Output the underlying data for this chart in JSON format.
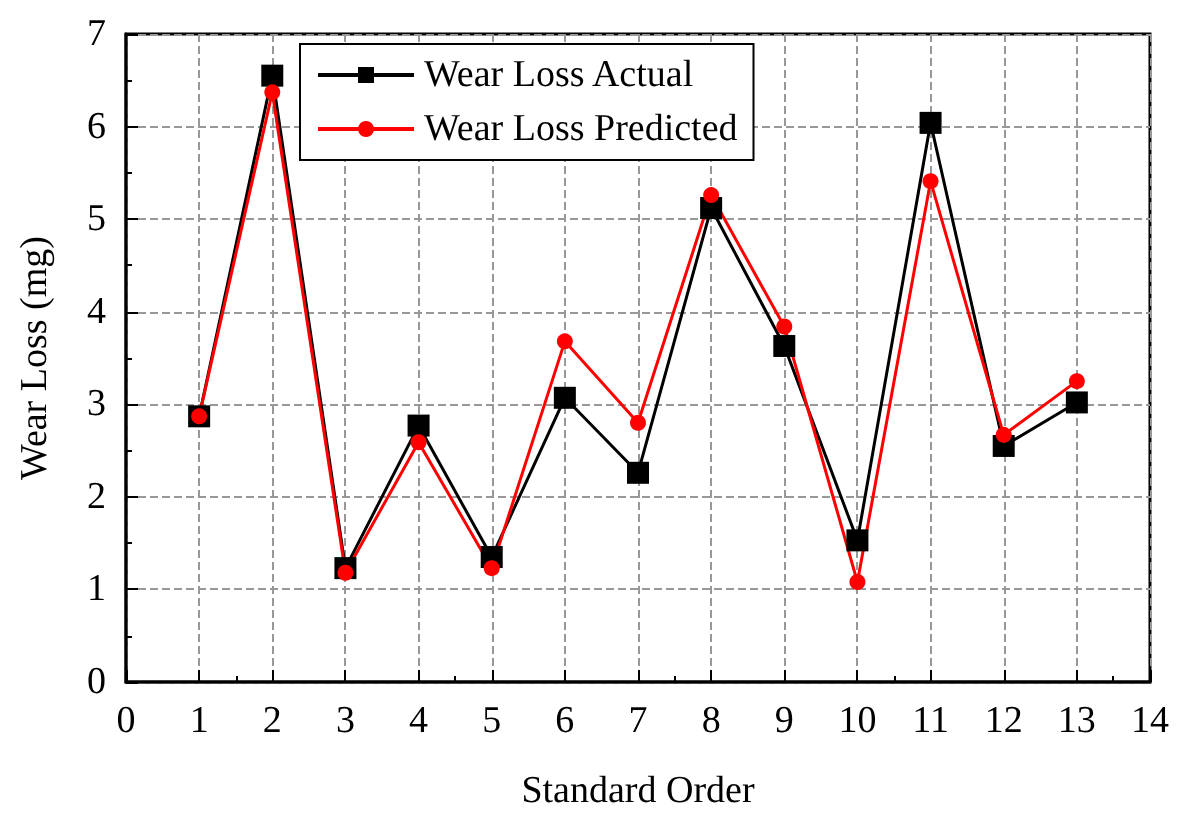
{
  "chart_data": {
    "type": "line",
    "xlabel": "Standard Order",
    "ylabel": "Wear Loss (mg)",
    "x": [
      1,
      2,
      3,
      4,
      5,
      6,
      7,
      8,
      9,
      10,
      11,
      12,
      13
    ],
    "series": [
      {
        "name": "Wear Loss Actual",
        "color": "#000000",
        "marker": "square",
        "values": [
          2.87,
          6.55,
          1.23,
          2.77,
          1.35,
          3.07,
          2.26,
          5.12,
          3.63,
          1.53,
          6.04,
          2.55,
          3.02
        ]
      },
      {
        "name": "Wear Loss Predicted",
        "color": "#ff0000",
        "marker": "circle",
        "values": [
          2.87,
          6.37,
          1.18,
          2.59,
          1.23,
          3.68,
          2.8,
          5.26,
          3.84,
          1.08,
          5.41,
          2.67,
          3.25
        ]
      }
    ],
    "xlim": [
      0,
      14
    ],
    "xticks": [
      0,
      1,
      2,
      3,
      4,
      5,
      6,
      7,
      8,
      9,
      10,
      11,
      12,
      13,
      14
    ],
    "ylim": [
      0,
      7
    ],
    "yticks": [
      0,
      1,
      2,
      3,
      4,
      5,
      6,
      7
    ],
    "grid": true,
    "legend": "top",
    "line_style": "solid"
  }
}
